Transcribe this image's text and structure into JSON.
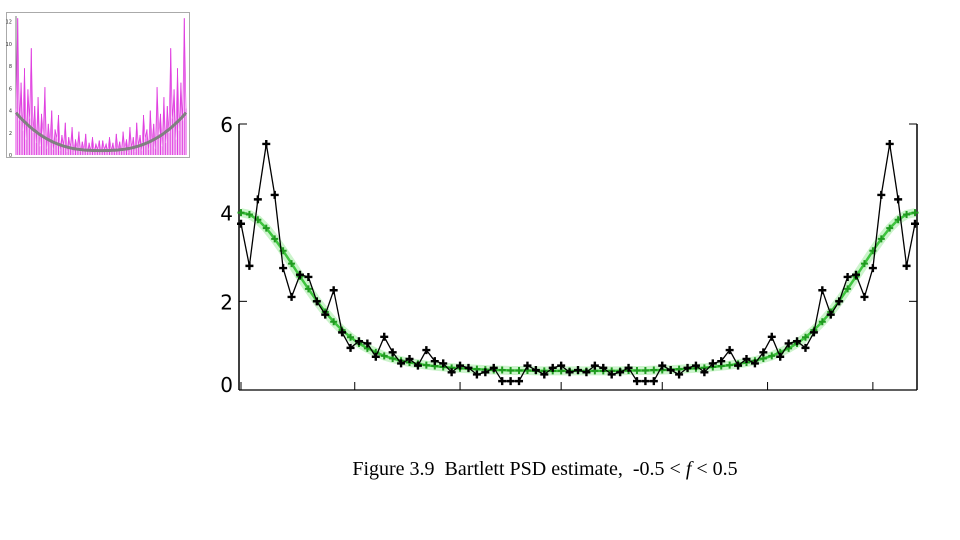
{
  "caption": {
    "prefix": "Figure 3.9  Bartlett PSD estimate,  -0.5 < ",
    "variable": "f",
    "suffix": " < 0.5"
  },
  "colors": {
    "raw_series": "#000000",
    "smooth_series": "#3ec43e",
    "smooth_glow": "#b7efb7",
    "thumb_raw": "#e040e0",
    "thumb_smooth": "#808080",
    "axis": "#000000"
  },
  "chart_data": [
    {
      "type": "line",
      "x": [
        0,
        1,
        2,
        3,
        4,
        5,
        6,
        7,
        8,
        9,
        10,
        11,
        12,
        13,
        14,
        15,
        16,
        17,
        18,
        19,
        20,
        21,
        22,
        23,
        24,
        25,
        26,
        27,
        28,
        29,
        30,
        31,
        32,
        33,
        34,
        35,
        36,
        37,
        38,
        39,
        40,
        41,
        42,
        43,
        44,
        45,
        46,
        47,
        48,
        49,
        50,
        51,
        52,
        53,
        54,
        55,
        56,
        57,
        58,
        59,
        60,
        61,
        62,
        63,
        64,
        65,
        66,
        67,
        68,
        69,
        70,
        71,
        72,
        73,
        74,
        75,
        76,
        77,
        78,
        79,
        80
      ],
      "series": [
        {
          "values": [
            3.75,
            2.8,
            4.3,
            5.55,
            4.4,
            2.75,
            2.1,
            2.6,
            2.55,
            2.0,
            1.7,
            2.25,
            1.3,
            0.95,
            1.1,
            1.05,
            0.75,
            1.2,
            0.85,
            0.6,
            0.7,
            0.55,
            0.9,
            0.65,
            0.6,
            0.4,
            0.55,
            0.5,
            0.35,
            0.4,
            0.5,
            0.2,
            0.2,
            0.2,
            0.55,
            0.45,
            0.35,
            0.5,
            0.55,
            0.4,
            0.45,
            0.4,
            0.55,
            0.5,
            0.35,
            0.4,
            0.5,
            0.2,
            0.2,
            0.2,
            0.55,
            0.45,
            0.35,
            0.5,
            0.55,
            0.4,
            0.6,
            0.65,
            0.9,
            0.55,
            0.7,
            0.6,
            0.85,
            1.2,
            0.75,
            1.05,
            1.1,
            0.95,
            1.3,
            2.25,
            1.7,
            2.0,
            2.55,
            2.6,
            2.1,
            2.75,
            4.4,
            5.55,
            4.3,
            2.8,
            3.75
          ]
        },
        {
          "values": [
            4.0,
            3.96,
            3.84,
            3.65,
            3.41,
            3.14,
            2.85,
            2.56,
            2.28,
            2.01,
            1.76,
            1.54,
            1.35,
            1.19,
            1.05,
            0.94,
            0.85,
            0.77,
            0.71,
            0.66,
            0.62,
            0.59,
            0.56,
            0.54,
            0.52,
            0.5,
            0.49,
            0.48,
            0.47,
            0.46,
            0.45,
            0.45,
            0.44,
            0.44,
            0.44,
            0.43,
            0.43,
            0.43,
            0.43,
            0.43,
            0.43,
            0.43,
            0.43,
            0.43,
            0.43,
            0.43,
            0.44,
            0.44,
            0.44,
            0.45,
            0.45,
            0.46,
            0.47,
            0.48,
            0.49,
            0.5,
            0.52,
            0.54,
            0.56,
            0.59,
            0.62,
            0.66,
            0.71,
            0.77,
            0.85,
            0.94,
            1.05,
            1.19,
            1.35,
            1.54,
            1.76,
            2.01,
            2.28,
            2.56,
            2.85,
            3.14,
            3.41,
            3.65,
            3.84,
            3.96,
            4.0
          ]
        }
      ],
      "xlim": [
        0,
        80
      ],
      "ylim": [
        0,
        6
      ],
      "yticks": [
        "0",
        "2",
        "4",
        "6"
      ],
      "xticks_unlabeled": [
        0,
        13.5,
        26,
        38,
        50,
        62.5,
        75
      ],
      "grid": false,
      "markers": "plus"
    },
    {
      "type": "line",
      "description_of_view": "thumbnail",
      "yticks": [
        "0",
        "2",
        "4",
        "6",
        "8",
        "10",
        "12"
      ],
      "ylim": [
        0,
        12.5
      ],
      "xlim": [
        0,
        100
      ],
      "x_count": 101,
      "raw_values": [
        4.2,
        12.3,
        3.1,
        6.5,
        2.2,
        7.8,
        1.4,
        5.9,
        3.3,
        9.6,
        2.0,
        4.4,
        1.1,
        5.2,
        0.8,
        3.7,
        1.9,
        6.1,
        0.6,
        2.8,
        1.2,
        4.0,
        0.5,
        2.3,
        1.5,
        3.6,
        0.4,
        1.8,
        0.9,
        2.9,
        0.3,
        1.6,
        0.7,
        2.5,
        0.2,
        1.4,
        0.6,
        2.1,
        0.3,
        1.2,
        0.5,
        1.9,
        0.2,
        1.1,
        0.4,
        1.6,
        0.3,
        1.0,
        0.5,
        1.3,
        0.2,
        1.3,
        0.5,
        1.0,
        0.3,
        1.6,
        0.4,
        1.1,
        0.2,
        1.9,
        0.5,
        1.2,
        0.3,
        2.1,
        0.6,
        1.4,
        0.2,
        2.5,
        0.7,
        1.6,
        0.3,
        2.9,
        0.9,
        1.8,
        0.4,
        3.6,
        1.5,
        2.3,
        0.5,
        4.0,
        1.2,
        2.8,
        0.6,
        6.1,
        1.9,
        3.7,
        0.8,
        5.2,
        1.1,
        4.4,
        2.0,
        9.6,
        3.3,
        5.9,
        1.4,
        7.8,
        2.2,
        6.5,
        3.1,
        12.3,
        4.2
      ],
      "smooth_shape": "U-shaped curve from about 3.8 at both ends down to about 0.4 in the middle"
    }
  ]
}
